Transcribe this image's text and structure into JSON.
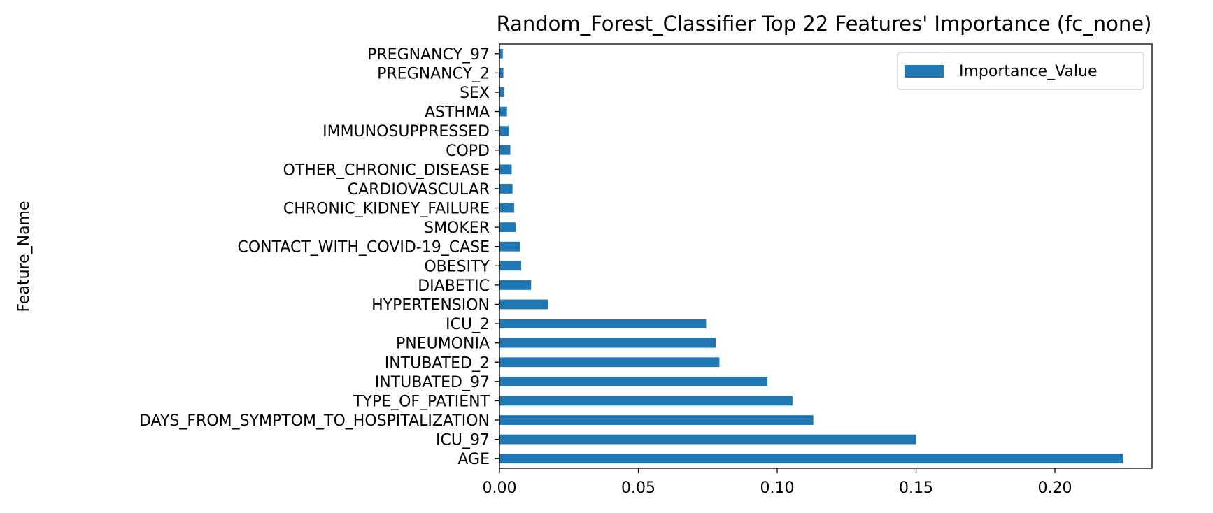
{
  "chart_data": {
    "type": "bar",
    "orientation": "horizontal",
    "title": "Random_Forest_Classifier Top 22 Features' Importance (fc_none)",
    "xlabel": "",
    "ylabel": "Feature_Name",
    "categories": [
      "AGE",
      "ICU_97",
      "DAYS_FROM_SYMPTOM_TO_HOSPITALIZATION",
      "TYPE_OF_PATIENT",
      "INTUBATED_97",
      "INTUBATED_2",
      "PNEUMONIA",
      "ICU_2",
      "HYPERTENSION",
      "DIABETIC",
      "OBESITY",
      "CONTACT_WITH_COVID-19_CASE",
      "SMOKER",
      "CHRONIC_KIDNEY_FAILURE",
      "CARDIOVASCULAR",
      "OTHER_CHRONIC_DISEASE",
      "COPD",
      "IMMUNOSUPPRESSED",
      "ASTHMA",
      "SEX",
      "PREGNANCY_2",
      "PREGNANCY_97"
    ],
    "series": [
      {
        "name": "Importance_Value",
        "color": "#1f77b4",
        "values": [
          0.2245,
          0.15,
          0.113,
          0.1055,
          0.0965,
          0.0792,
          0.0779,
          0.0744,
          0.0176,
          0.0114,
          0.0078,
          0.0075,
          0.0058,
          0.0053,
          0.0047,
          0.0044,
          0.0039,
          0.0034,
          0.0027,
          0.0017,
          0.0014,
          0.0012
        ]
      }
    ],
    "xlim": [
      0,
      0.235
    ],
    "xticks": [
      0.0,
      0.05,
      0.1,
      0.15,
      0.2
    ],
    "xtick_labels": [
      "0.00",
      "0.05",
      "0.10",
      "0.15",
      "0.20"
    ],
    "legend": {
      "position": "top-right",
      "entries": [
        "Importance_Value"
      ]
    },
    "grid": false
  }
}
